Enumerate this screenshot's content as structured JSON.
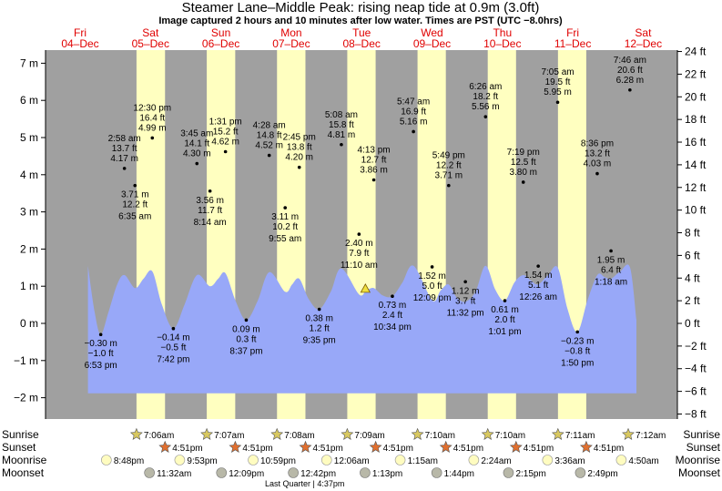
{
  "header": {
    "title": "Steamer Lane–Middle Peak: rising  neap tide at 0.9m (3.0ft)",
    "subtitle": "Image captured 2 hours and 10 minutes after low water. Times are PST (UTC −8.0hrs)"
  },
  "colors": {
    "night": "#a0a0a0",
    "day": "#ffffc0",
    "water": "#98a8f8",
    "date_text": "#e00000",
    "sun_icon": "#d8c860",
    "sunset_icon": "#e07030",
    "moonrise_icon": "#fffcc0",
    "moonset_icon": "#b8b8a8"
  },
  "days": [
    {
      "dow": "Fri",
      "date": "04–Dec"
    },
    {
      "dow": "Sat",
      "date": "05–Dec"
    },
    {
      "dow": "Sun",
      "date": "06–Dec"
    },
    {
      "dow": "Mon",
      "date": "07–Dec"
    },
    {
      "dow": "Tue",
      "date": "08–Dec"
    },
    {
      "dow": "Wed",
      "date": "09–Dec"
    },
    {
      "dow": "Thu",
      "date": "10–Dec"
    },
    {
      "dow": "Fri",
      "date": "11–Dec"
    },
    {
      "dow": "Sat",
      "date": "12–Dec"
    }
  ],
  "chart_data": {
    "type": "area",
    "x_unit": "hours since 04-Dec 00:00 PST",
    "y_unit": "m",
    "ylim_m": [
      -2.6,
      7.4
    ],
    "y_ticks_m": [
      -2,
      -1,
      0,
      1,
      2,
      3,
      4,
      5,
      6,
      7
    ],
    "y_tick_labels_m": [
      "−2 m",
      "−1 m",
      "0 m",
      "1 m",
      "2 m",
      "3 m",
      "4 m",
      "5 m",
      "6 m",
      "7 m"
    ],
    "y_ticks_ft": [
      -8,
      -6,
      -4,
      -2,
      0,
      2,
      4,
      6,
      8,
      10,
      12,
      14,
      16,
      18,
      20,
      22,
      24
    ],
    "y_tick_labels_ft": [
      "−8 ft",
      "−6 ft",
      "−4 ft",
      "−2 ft",
      "0 ft",
      "2 ft",
      "4 ft",
      "6 ft",
      "8 ft",
      "10 ft",
      "12 ft",
      "14 ft",
      "16 ft",
      "18 ft",
      "20 ft",
      "22 ft",
      "24 ft"
    ],
    "tides": [
      {
        "time": "6:53 pm",
        "m": "−0.30 m",
        "ft": "−1.0 ft",
        "h": 18.88,
        "v": -0.3,
        "type": "low"
      },
      {
        "time": "2:58 am",
        "m": "4.17 m",
        "ft": "13.7 ft",
        "h": 26.97,
        "v": 4.17,
        "type": "high"
      },
      {
        "time": "6:35 am",
        "m": "3.71 m",
        "ft": "12.2 ft",
        "h": 30.58,
        "v": 3.71,
        "type": "low"
      },
      {
        "time": "12:30 pm",
        "m": "4.99 m",
        "ft": "16.4 ft",
        "h": 36.5,
        "v": 4.99,
        "type": "high"
      },
      {
        "time": "7:42 pm",
        "m": "−0.14 m",
        "ft": "−0.5 ft",
        "h": 43.7,
        "v": -0.14,
        "type": "low"
      },
      {
        "time": "3:45 am",
        "m": "4.30 m",
        "ft": "14.1 ft",
        "h": 51.75,
        "v": 4.3,
        "type": "high"
      },
      {
        "time": "8:14 am",
        "m": "3.56 m",
        "ft": "11.7 ft",
        "h": 56.23,
        "v": 3.56,
        "type": "low"
      },
      {
        "time": "1:31 pm",
        "m": "4.62 m",
        "ft": "15.2 ft",
        "h": 61.52,
        "v": 4.62,
        "type": "high"
      },
      {
        "time": "8:37 pm",
        "m": "0.09 m",
        "ft": "0.3 ft",
        "h": 68.62,
        "v": 0.09,
        "type": "low"
      },
      {
        "time": "4:28 am",
        "m": "4.52 m",
        "ft": "14.8 ft",
        "h": 76.47,
        "v": 4.52,
        "type": "high"
      },
      {
        "time": "9:55 am",
        "m": "3.11 m",
        "ft": "10.2 ft",
        "h": 81.92,
        "v": 3.11,
        "type": "low"
      },
      {
        "time": "2:45 pm",
        "m": "4.20 m",
        "ft": "13.8 ft",
        "h": 86.75,
        "v": 4.2,
        "type": "high"
      },
      {
        "time": "9:35 pm",
        "m": "0.38 m",
        "ft": "1.2 ft",
        "h": 93.58,
        "v": 0.38,
        "type": "low"
      },
      {
        "time": "5:08 am",
        "m": "4.81 m",
        "ft": "15.8 ft",
        "h": 101.13,
        "v": 4.81,
        "type": "high"
      },
      {
        "time": "11:10 am",
        "m": "2.40 m",
        "ft": "7.9 ft",
        "h": 107.17,
        "v": 2.4,
        "type": "low"
      },
      {
        "time": "4:13 pm",
        "m": "3.86 m",
        "ft": "12.7 ft",
        "h": 112.22,
        "v": 3.86,
        "type": "high"
      },
      {
        "time": "10:34 pm",
        "m": "0.73 m",
        "ft": "2.4 ft",
        "h": 118.57,
        "v": 0.73,
        "type": "low"
      },
      {
        "time": "5:47 am",
        "m": "5.16 m",
        "ft": "16.9 ft",
        "h": 125.78,
        "v": 5.16,
        "type": "high"
      },
      {
        "time": "12:09 pm",
        "m": "1.52 m",
        "ft": "5.0 ft",
        "h": 132.15,
        "v": 1.52,
        "type": "low"
      },
      {
        "time": "5:49 pm",
        "m": "3.71 m",
        "ft": "12.2 ft",
        "h": 137.82,
        "v": 3.71,
        "type": "high"
      },
      {
        "time": "11:32 pm",
        "m": "1.12 m",
        "ft": "3.7 ft",
        "h": 143.53,
        "v": 1.12,
        "type": "low"
      },
      {
        "time": "6:26 am",
        "m": "5.56 m",
        "ft": "18.2 ft",
        "h": 150.43,
        "v": 5.56,
        "type": "high"
      },
      {
        "time": "1:01 pm",
        "m": "0.61 m",
        "ft": "2.0 ft",
        "h": 157.02,
        "v": 0.61,
        "type": "low"
      },
      {
        "time": "7:19 pm",
        "m": "3.80 m",
        "ft": "12.5 ft",
        "h": 163.32,
        "v": 3.8,
        "type": "high"
      },
      {
        "time": "12:26 am",
        "m": "1.54 m",
        "ft": "5.1 ft",
        "h": 168.43,
        "v": 1.54,
        "type": "low"
      },
      {
        "time": "7:05 am",
        "m": "5.95 m",
        "ft": "19.5 ft",
        "h": 175.08,
        "v": 5.95,
        "type": "high"
      },
      {
        "time": "1:50 pm",
        "m": "−0.23 m",
        "ft": "−0.8 ft",
        "h": 181.83,
        "v": -0.23,
        "type": "low"
      },
      {
        "time": "8:36 pm",
        "m": "4.03 m",
        "ft": "13.2 ft",
        "h": 188.6,
        "v": 4.03,
        "type": "high"
      },
      {
        "time": "1:18 am",
        "m": "1.95 m",
        "ft": "6.4 ft",
        "h": 193.3,
        "v": 1.95,
        "type": "low"
      },
      {
        "time": "7:46 am",
        "m": "6.28 m",
        "ft": "20.6 ft",
        "h": 199.77,
        "v": 6.28,
        "type": "high"
      }
    ],
    "water_curve": [
      [
        14.5,
        1.55
      ],
      [
        16.8,
        0.3
      ],
      [
        18.9,
        -0.3
      ],
      [
        21.5,
        0.3
      ],
      [
        24.5,
        1.05
      ],
      [
        27.0,
        1.3
      ],
      [
        30.6,
        0.95
      ],
      [
        33.5,
        1.2
      ],
      [
        36.5,
        1.4
      ],
      [
        39.8,
        0.5
      ],
      [
        43.7,
        -0.14
      ],
      [
        47.5,
        0.5
      ],
      [
        51.75,
        1.3
      ],
      [
        56.2,
        1.0
      ],
      [
        59.0,
        1.2
      ],
      [
        61.5,
        1.35
      ],
      [
        65.0,
        0.6
      ],
      [
        68.6,
        0.09
      ],
      [
        72.5,
        0.6
      ],
      [
        76.5,
        1.38
      ],
      [
        81.9,
        0.85
      ],
      [
        84.3,
        1.05
      ],
      [
        86.75,
        1.2
      ],
      [
        90.0,
        0.65
      ],
      [
        93.6,
        0.38
      ],
      [
        97.5,
        0.85
      ],
      [
        101.1,
        1.48
      ],
      [
        107.2,
        0.78
      ],
      [
        109.6,
        0.88
      ],
      [
        112.2,
        0.95
      ],
      [
        115.3,
        0.75
      ],
      [
        118.6,
        0.73
      ],
      [
        122.0,
        1.1
      ],
      [
        125.8,
        1.55
      ],
      [
        132.2,
        0.62
      ],
      [
        135.0,
        0.88
      ],
      [
        137.8,
        1.05
      ],
      [
        140.5,
        0.7
      ],
      [
        143.5,
        0.58
      ],
      [
        147.0,
        0.85
      ],
      [
        150.4,
        1.55
      ],
      [
        153.8,
        0.9
      ],
      [
        157.0,
        0.61
      ],
      [
        160.3,
        1.1
      ],
      [
        163.3,
        1.3
      ],
      [
        166.0,
        1.15
      ],
      [
        168.4,
        1.05
      ],
      [
        171.8,
        1.3
      ],
      [
        175.1,
        1.5
      ],
      [
        178.4,
        0.4
      ],
      [
        181.8,
        -0.23
      ],
      [
        185.2,
        0.6
      ],
      [
        188.6,
        1.3
      ],
      [
        191.0,
        1.25
      ],
      [
        193.3,
        1.2
      ],
      [
        196.5,
        1.4
      ],
      [
        199.8,
        1.5
      ],
      [
        202.0,
        0.1
      ]
    ],
    "current_marker": {
      "h": 109.35,
      "v": 0.91
    },
    "daylight": [
      {
        "rise_h": 31.1,
        "set_h": 40.85
      },
      {
        "rise_h": 55.12,
        "set_h": 64.85
      },
      {
        "rise_h": 79.13,
        "set_h": 88.85
      },
      {
        "rise_h": 103.15,
        "set_h": 112.85
      },
      {
        "rise_h": 127.17,
        "set_h": 136.85
      },
      {
        "rise_h": 151.17,
        "set_h": 160.85
      },
      {
        "rise_h": 175.18,
        "set_h": 184.85
      }
    ]
  },
  "events": {
    "labels": {
      "sunrise": "Sunrise",
      "sunset": "Sunset",
      "moonrise": "Moonrise",
      "moonset": "Moonset"
    },
    "sunrise": [
      {
        "t": "7:06am",
        "h": 31.1
      },
      {
        "t": "7:07am",
        "h": 55.12
      },
      {
        "t": "7:08am",
        "h": 79.13
      },
      {
        "t": "7:09am",
        "h": 103.15
      },
      {
        "t": "7:10am",
        "h": 127.17
      },
      {
        "t": "7:10am",
        "h": 151.17
      },
      {
        "t": "7:11am",
        "h": 175.18
      },
      {
        "t": "7:12am",
        "h": 199.2
      }
    ],
    "sunset": [
      {
        "t": "4:51pm",
        "h": 40.85
      },
      {
        "t": "4:51pm",
        "h": 64.85
      },
      {
        "t": "4:51pm",
        "h": 88.85
      },
      {
        "t": "4:51pm",
        "h": 112.85
      },
      {
        "t": "4:51pm",
        "h": 136.85
      },
      {
        "t": "4:51pm",
        "h": 160.85
      },
      {
        "t": "4:51pm",
        "h": 184.85
      }
    ],
    "moonrise": [
      {
        "t": "8:48pm",
        "h": 20.8
      },
      {
        "t": "9:53pm",
        "h": 45.88
      },
      {
        "t": "10:59pm",
        "h": 70.98
      },
      {
        "t": "12:06am",
        "h": 96.1
      },
      {
        "t": "1:15am",
        "h": 121.25
      },
      {
        "t": "2:24am",
        "h": 146.4
      },
      {
        "t": "3:36am",
        "h": 171.6
      },
      {
        "t": "4:50am",
        "h": 196.83
      }
    ],
    "moonset": [
      {
        "t": "11:32am",
        "h": 35.53
      },
      {
        "t": "12:09pm",
        "h": 60.15
      },
      {
        "t": "12:42pm",
        "h": 84.7
      },
      {
        "t": "1:13pm",
        "h": 109.22
      },
      {
        "t": "1:44pm",
        "h": 133.73
      },
      {
        "t": "2:15pm",
        "h": 158.25
      },
      {
        "t": "2:49pm",
        "h": 182.82
      }
    ],
    "moon_phase": "Last Quarter | 4:37pm",
    "moon_phase_h": 88.6
  }
}
